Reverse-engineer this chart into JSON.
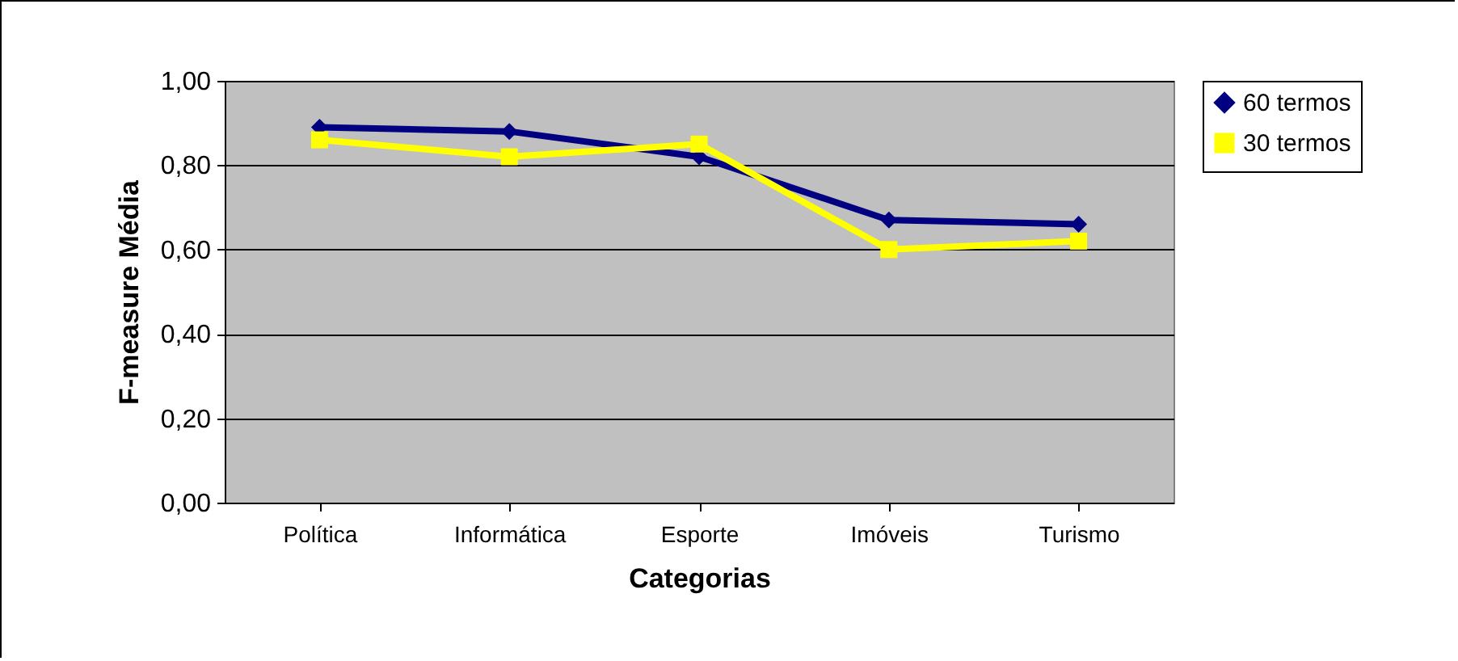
{
  "chart_data": {
    "type": "line",
    "xlabel": "Categorias",
    "ylabel": "F-measure Média",
    "categories": [
      "Política",
      "Informática",
      "Esporte",
      "Imóveis",
      "Turismo"
    ],
    "series": [
      {
        "name": "60 termos",
        "color": "#000080",
        "marker": "diamond",
        "values": [
          0.89,
          0.88,
          0.82,
          0.67,
          0.66
        ]
      },
      {
        "name": "30 termos",
        "color": "#ffff00",
        "marker": "square",
        "values": [
          0.86,
          0.82,
          0.85,
          0.6,
          0.62
        ]
      }
    ],
    "ylim": [
      0,
      1
    ],
    "yticks": [
      {
        "value": 0,
        "label": "0,00"
      },
      {
        "value": 0.2,
        "label": "0,20"
      },
      {
        "value": 0.4,
        "label": "0,40"
      },
      {
        "value": 0.6,
        "label": "0,60"
      },
      {
        "value": 0.8,
        "label": "0,80"
      },
      {
        "value": 1,
        "label": "1,00"
      }
    ],
    "grid": "y",
    "legend": "right"
  }
}
